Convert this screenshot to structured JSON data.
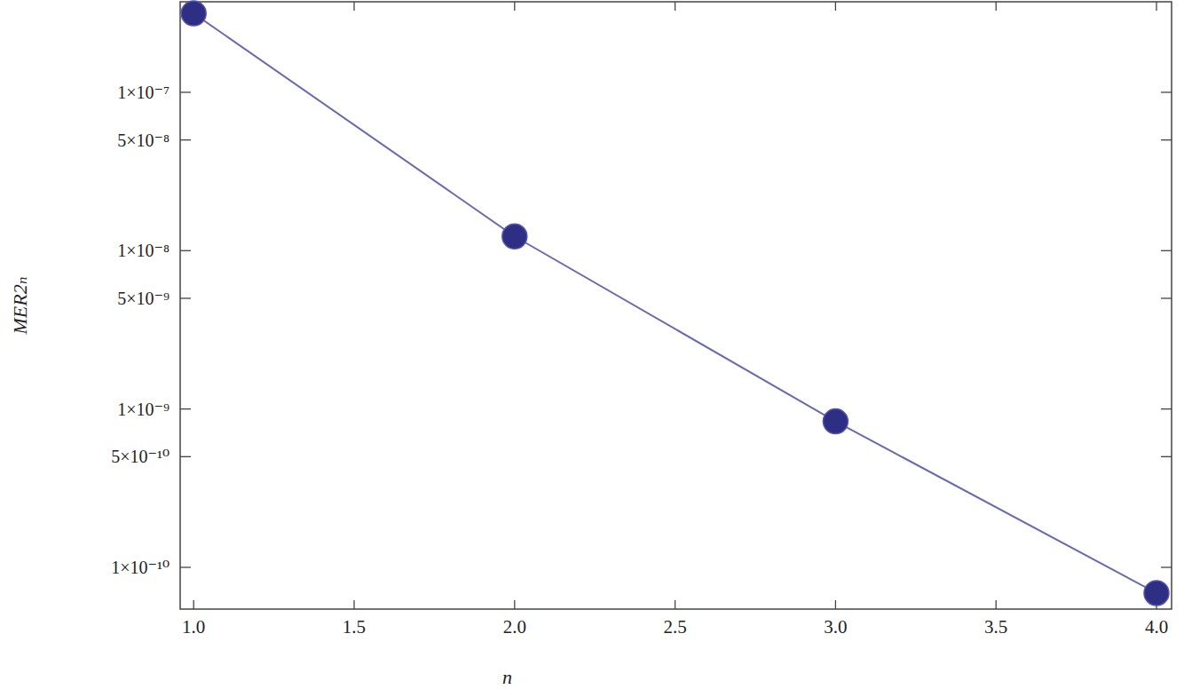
{
  "chart_data": {
    "type": "line",
    "x_label": "n",
    "y_label": "MER2ₙ",
    "x": [
      1,
      2,
      3,
      4
    ],
    "series": [
      {
        "name": "MER2ₙ",
        "color": "#2e2e85",
        "values": [
          3.15e-07,
          1.23e-08,
          8.35e-10,
          6.88e-11
        ],
        "marker": "circle",
        "line_style": "solid"
      }
    ],
    "log": "y",
    "xlim": [
      0.958,
      4.047
    ],
    "ylim": [
      5.45e-11,
      3.73e-07
    ],
    "xticks": [
      {
        "value": 1,
        "label": "1.0"
      },
      1.5,
      {
        "value": 2,
        "label": "2.0"
      },
      2.5,
      {
        "value": 3,
        "label": "3.0"
      },
      3.5,
      {
        "value": 4,
        "label": "4.0"
      }
    ],
    "yticks": [
      {
        "value": 1e-07,
        "label": "1×10⁻⁷"
      },
      {
        "value": 5e-08,
        "label": "5×10⁻⁸"
      },
      {
        "value": 1e-08,
        "label": "1×10⁻⁸"
      },
      {
        "value": 5e-09,
        "label": "5×10⁻⁹"
      },
      {
        "value": 1e-09,
        "label": "1×10⁻⁹"
      },
      {
        "value": 5e-10,
        "label": "5×10⁻¹⁰"
      },
      {
        "value": 1e-10,
        "label": "1×10⁻¹⁰"
      }
    ],
    "grid": false
  }
}
